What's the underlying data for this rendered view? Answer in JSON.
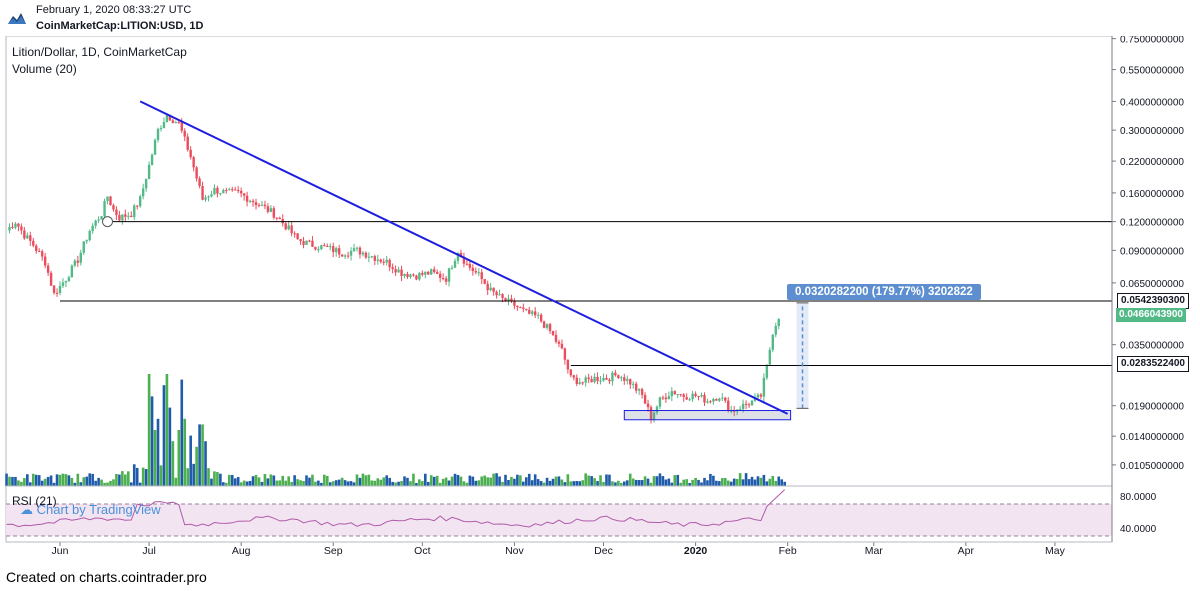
{
  "header": {
    "timestamp": "February 1, 2020 08:33:27 UTC",
    "symbol": "CoinMarketCap:LITION:USD, 1D"
  },
  "legend": {
    "title": "Lition/Dollar, 1D, CoinMarketCap",
    "volume": "Volume (20)",
    "rsi": "RSI (21)"
  },
  "watermark": "Chart by TradingView",
  "footer": "Created on charts.cointrader.pro",
  "colors": {
    "up": "#53b987",
    "down": "#eb4d5c",
    "trendline": "#1e1ee0",
    "volume_up": "#4caf50",
    "volume_down": "#1f5bab",
    "rsi_line": "#b05aaa",
    "rsi_band": "#f3e4f1",
    "tag": "#5d8fd0",
    "last_price": "#53b987"
  },
  "measure_label": "0.0320282200 (179.77%) 3202822",
  "price_tags": {
    "resistance": "0.0542390300",
    "last": "0.0466043900",
    "breakout": "0.0283522400"
  },
  "chart_data": {
    "type": "candlestick",
    "title": "Lition/Dollar, 1D, CoinMarketCap",
    "y_scale": "log",
    "ylim": [
      0.0085,
      0.77
    ],
    "y_ticks": [
      "0.7500000000",
      "0.5500000000",
      "0.4000000000",
      "0.3000000000",
      "0.2200000000",
      "0.1600000000",
      "0.1200000000",
      "0.0900000000",
      "0.0650000000",
      "0.0350000000",
      "0.0190000000",
      "0.0140000000",
      "0.0105000000"
    ],
    "y_tick_values": [
      0.75,
      0.55,
      0.4,
      0.3,
      0.22,
      0.16,
      0.12,
      0.09,
      0.065,
      0.035,
      0.019,
      0.014,
      0.0105
    ],
    "x_labels": [
      "Jun",
      "Jul",
      "Aug",
      "Sep",
      "Oct",
      "Nov",
      "Dec",
      "2020",
      "Feb",
      "Mar",
      "Apr",
      "May"
    ],
    "x_label_days": [
      0,
      30,
      61,
      92,
      122,
      153,
      183,
      214,
      245,
      274,
      305,
      335
    ],
    "approx_path": [
      {
        "day": -18,
        "close": 0.11
      },
      {
        "day": -15,
        "close": 0.12
      },
      {
        "day": -12,
        "close": 0.105
      },
      {
        "day": -9,
        "close": 0.095
      },
      {
        "day": -5,
        "close": 0.08
      },
      {
        "day": -2,
        "close": 0.058
      },
      {
        "day": 2,
        "close": 0.068
      },
      {
        "day": 6,
        "close": 0.082
      },
      {
        "day": 10,
        "close": 0.11
      },
      {
        "day": 14,
        "close": 0.13
      },
      {
        "day": 16,
        "close": 0.155
      },
      {
        "day": 18,
        "close": 0.135
      },
      {
        "day": 20,
        "close": 0.125
      },
      {
        "day": 24,
        "close": 0.13
      },
      {
        "day": 27,
        "close": 0.15
      },
      {
        "day": 30,
        "close": 0.21
      },
      {
        "day": 33,
        "close": 0.3
      },
      {
        "day": 36,
        "close": 0.35
      },
      {
        "day": 40,
        "close": 0.32
      },
      {
        "day": 44,
        "close": 0.23
      },
      {
        "day": 48,
        "close": 0.15
      },
      {
        "day": 52,
        "close": 0.165
      },
      {
        "day": 56,
        "close": 0.16
      },
      {
        "day": 60,
        "close": 0.16
      },
      {
        "day": 64,
        "close": 0.15
      },
      {
        "day": 68,
        "close": 0.14
      },
      {
        "day": 72,
        "close": 0.13
      },
      {
        "day": 76,
        "close": 0.115
      },
      {
        "day": 80,
        "close": 0.1
      },
      {
        "day": 85,
        "close": 0.095
      },
      {
        "day": 90,
        "close": 0.092
      },
      {
        "day": 95,
        "close": 0.088
      },
      {
        "day": 100,
        "close": 0.09
      },
      {
        "day": 105,
        "close": 0.085
      },
      {
        "day": 110,
        "close": 0.08
      },
      {
        "day": 115,
        "close": 0.072
      },
      {
        "day": 120,
        "close": 0.07
      },
      {
        "day": 125,
        "close": 0.072
      },
      {
        "day": 130,
        "close": 0.068
      },
      {
        "day": 134,
        "close": 0.09
      },
      {
        "day": 137,
        "close": 0.078
      },
      {
        "day": 141,
        "close": 0.07
      },
      {
        "day": 145,
        "close": 0.06
      },
      {
        "day": 149,
        "close": 0.055
      },
      {
        "day": 153,
        "close": 0.052
      },
      {
        "day": 157,
        "close": 0.048
      },
      {
        "day": 161,
        "close": 0.046
      },
      {
        "day": 165,
        "close": 0.04
      },
      {
        "day": 169,
        "close": 0.033
      },
      {
        "day": 172,
        "close": 0.025
      },
      {
        "day": 176,
        "close": 0.024
      },
      {
        "day": 180,
        "close": 0.025
      },
      {
        "day": 184,
        "close": 0.025
      },
      {
        "day": 188,
        "close": 0.026
      },
      {
        "day": 192,
        "close": 0.024
      },
      {
        "day": 196,
        "close": 0.021
      },
      {
        "day": 199,
        "close": 0.017
      },
      {
        "day": 202,
        "close": 0.02
      },
      {
        "day": 206,
        "close": 0.022
      },
      {
        "day": 210,
        "close": 0.021
      },
      {
        "day": 214,
        "close": 0.021
      },
      {
        "day": 218,
        "close": 0.02
      },
      {
        "day": 222,
        "close": 0.021
      },
      {
        "day": 226,
        "close": 0.018
      },
      {
        "day": 230,
        "close": 0.019
      },
      {
        "day": 234,
        "close": 0.02
      },
      {
        "day": 236,
        "close": 0.021
      },
      {
        "day": 238,
        "close": 0.028
      },
      {
        "day": 240,
        "close": 0.04
      },
      {
        "day": 242,
        "close": 0.0466
      }
    ],
    "trendline": {
      "start": {
        "day": 27,
        "price": 0.4
      },
      "end": {
        "day": 245,
        "price": 0.0175
      }
    },
    "horizontal_levels": [
      0.12,
      0.0542,
      0.0284
    ],
    "support_box": {
      "day_start": 190,
      "day_end": 246,
      "low": 0.0165,
      "high": 0.0181
    },
    "measure": {
      "day": 250,
      "from": 0.0185,
      "to": 0.0532
    },
    "rsi": {
      "ylim": [
        30,
        90
      ],
      "y_ticks": [
        "80.0000",
        "40.0000"
      ],
      "y_tick_values": [
        80,
        40
      ],
      "band": [
        30,
        70
      ]
    },
    "volume_series": [
      {
        "day": 30,
        "value": 1.0,
        "up": true
      },
      {
        "day": 31,
        "value": 0.8,
        "up": false
      },
      {
        "day": 32,
        "value": 0.5,
        "up": true
      },
      {
        "day": 33,
        "value": 0.6,
        "up": false
      },
      {
        "day": 35,
        "value": 0.9,
        "up": false
      },
      {
        "day": 36,
        "value": 1.0,
        "up": true
      },
      {
        "day": 37,
        "value": 0.7,
        "up": false
      },
      {
        "day": 38,
        "value": 0.4,
        "up": true
      },
      {
        "day": 40,
        "value": 0.5,
        "up": true
      },
      {
        "day": 41,
        "value": 0.95,
        "up": false
      },
      {
        "day": 42,
        "value": 0.6,
        "up": true
      },
      {
        "day": 44,
        "value": 0.45,
        "up": false
      },
      {
        "day": 46,
        "value": 0.35,
        "up": true
      },
      {
        "day": 47,
        "value": 0.55,
        "up": false
      },
      {
        "day": 48,
        "value": 0.55,
        "up": true
      },
      {
        "day": 49,
        "value": 0.4,
        "up": false
      }
    ]
  }
}
